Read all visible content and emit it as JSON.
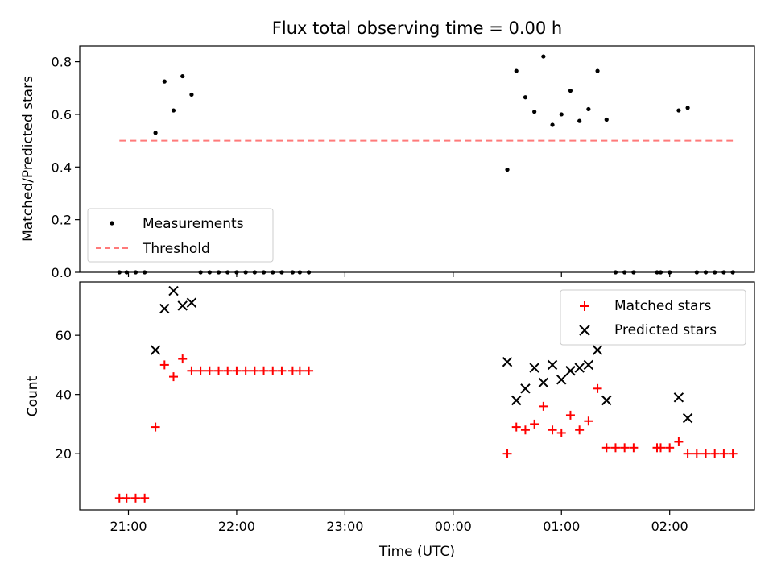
{
  "chart_data": [
    {
      "type": "scatter",
      "title": "Flux total observing time = 0.00 h",
      "xlabel": "",
      "ylabel": "Matched/Predicted stars",
      "xlim": [
        "20:33",
        "02:47"
      ],
      "ylim": [
        0,
        0.86
      ],
      "yticks": [
        0.0,
        0.2,
        0.4,
        0.6,
        0.8
      ],
      "ytick_labels": [
        "0.0",
        "0.2",
        "0.4",
        "0.6",
        "0.8"
      ],
      "xticks": [
        "21:00",
        "22:00",
        "23:00",
        "00:00",
        "01:00",
        "02:00"
      ],
      "grid": false,
      "legend_position": "lower-left",
      "series": [
        {
          "name": "Measurements",
          "kind": "scatter",
          "color": "#000000",
          "points": [
            [
              "20:55",
              0
            ],
            [
              "20:59",
              0
            ],
            [
              "21:04",
              0
            ],
            [
              "21:09",
              0
            ],
            [
              "21:15",
              0.53
            ],
            [
              "21:20",
              0.725
            ],
            [
              "21:25",
              0.615
            ],
            [
              "21:30",
              0.745
            ],
            [
              "21:35",
              0.675
            ],
            [
              "21:40",
              0
            ],
            [
              "21:45",
              0
            ],
            [
              "21:50",
              0
            ],
            [
              "21:55",
              0
            ],
            [
              "22:00",
              0
            ],
            [
              "22:05",
              0
            ],
            [
              "22:10",
              0
            ],
            [
              "22:15",
              0
            ],
            [
              "22:20",
              0
            ],
            [
              "22:25",
              0
            ],
            [
              "22:31",
              0
            ],
            [
              "22:35",
              0
            ],
            [
              "22:40",
              0
            ],
            [
              "00:30",
              0.39
            ],
            [
              "00:35",
              0.765
            ],
            [
              "00:40",
              0.665
            ],
            [
              "00:45",
              0.61
            ],
            [
              "00:50",
              0.82
            ],
            [
              "00:55",
              0.56
            ],
            [
              "01:00",
              0.6
            ],
            [
              "01:05",
              0.69
            ],
            [
              "01:10",
              0.575
            ],
            [
              "01:15",
              0.62
            ],
            [
              "01:20",
              0.765
            ],
            [
              "01:25",
              0.58
            ],
            [
              "01:30",
              0
            ],
            [
              "01:35",
              0
            ],
            [
              "01:40",
              0
            ],
            [
              "01:53",
              0
            ],
            [
              "01:55",
              0
            ],
            [
              "02:00",
              0
            ],
            [
              "02:05",
              0.615
            ],
            [
              "02:10",
              0.625
            ],
            [
              "02:15",
              0
            ],
            [
              "02:20",
              0
            ],
            [
              "02:25",
              0
            ],
            [
              "02:30",
              0
            ],
            [
              "02:35",
              0
            ]
          ]
        },
        {
          "name": "Threshold",
          "kind": "line",
          "style": "dashed",
          "color": "#ff7a7a",
          "points": [
            [
              "20:55",
              0.5
            ],
            [
              "02:35",
              0.5
            ]
          ]
        }
      ]
    },
    {
      "type": "scatter",
      "title": "",
      "xlabel": "Time (UTC)",
      "ylabel": "Count",
      "xlim": [
        "20:33",
        "02:47"
      ],
      "ylim": [
        1,
        78
      ],
      "yticks": [
        20,
        40,
        60
      ],
      "ytick_labels": [
        "20",
        "40",
        "60"
      ],
      "xticks": [
        "21:00",
        "22:00",
        "23:00",
        "00:00",
        "01:00",
        "02:00"
      ],
      "xtick_labels": [
        "21:00",
        "22:00",
        "23:00",
        "00:00",
        "01:00",
        "02:00"
      ],
      "grid": false,
      "legend_position": "upper-right",
      "series": [
        {
          "name": "Matched stars",
          "marker": "plus",
          "color": "#ff0000",
          "points": [
            [
              "20:55",
              5
            ],
            [
              "20:59",
              5
            ],
            [
              "21:04",
              5
            ],
            [
              "21:09",
              5
            ],
            [
              "21:15",
              29
            ],
            [
              "21:20",
              50
            ],
            [
              "21:25",
              46
            ],
            [
              "21:30",
              52
            ],
            [
              "21:35",
              48
            ],
            [
              "21:40",
              48
            ],
            [
              "21:45",
              48
            ],
            [
              "21:50",
              48
            ],
            [
              "21:55",
              48
            ],
            [
              "22:00",
              48
            ],
            [
              "22:05",
              48
            ],
            [
              "22:10",
              48
            ],
            [
              "22:15",
              48
            ],
            [
              "22:20",
              48
            ],
            [
              "22:25",
              48
            ],
            [
              "22:31",
              48
            ],
            [
              "22:35",
              48
            ],
            [
              "22:40",
              48
            ],
            [
              "00:30",
              20
            ],
            [
              "00:35",
              29
            ],
            [
              "00:40",
              28
            ],
            [
              "00:45",
              30
            ],
            [
              "00:50",
              36
            ],
            [
              "00:55",
              28
            ],
            [
              "01:00",
              27
            ],
            [
              "01:05",
              33
            ],
            [
              "01:10",
              28
            ],
            [
              "01:15",
              31
            ],
            [
              "01:20",
              42
            ],
            [
              "01:25",
              22
            ],
            [
              "01:30",
              22
            ],
            [
              "01:35",
              22
            ],
            [
              "01:40",
              22
            ],
            [
              "01:53",
              22
            ],
            [
              "01:55",
              22
            ],
            [
              "02:00",
              22
            ],
            [
              "02:05",
              24
            ],
            [
              "02:10",
              20
            ],
            [
              "02:15",
              20
            ],
            [
              "02:20",
              20
            ],
            [
              "02:25",
              20
            ],
            [
              "02:30",
              20
            ],
            [
              "02:35",
              20
            ]
          ]
        },
        {
          "name": "Predicted stars",
          "marker": "x",
          "color": "#000000",
          "points": [
            [
              "21:15",
              55
            ],
            [
              "21:20",
              69
            ],
            [
              "21:25",
              75
            ],
            [
              "21:30",
              70
            ],
            [
              "21:35",
              71
            ],
            [
              "00:30",
              51
            ],
            [
              "00:35",
              38
            ],
            [
              "00:40",
              42
            ],
            [
              "00:45",
              49
            ],
            [
              "00:50",
              44
            ],
            [
              "00:55",
              50
            ],
            [
              "01:00",
              45
            ],
            [
              "01:05",
              48
            ],
            [
              "01:10",
              49
            ],
            [
              "01:15",
              50
            ],
            [
              "01:20",
              55
            ],
            [
              "01:25",
              38
            ],
            [
              "02:05",
              39
            ],
            [
              "02:10",
              32
            ]
          ]
        }
      ]
    }
  ]
}
